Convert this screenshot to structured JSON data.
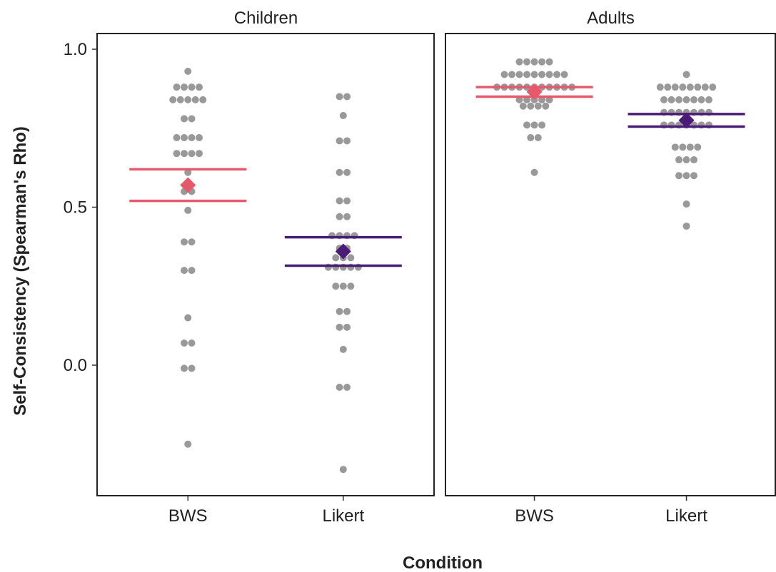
{
  "chart_data": {
    "type": "scatter",
    "title": "",
    "xlabel": "Condition",
    "ylabel": "Self-Consistency (Spearman's Rho)",
    "ylim": [
      -0.41,
      1.03
    ],
    "yticks": [
      "1.0",
      "0.5",
      "0.0"
    ],
    "ytick_values": [
      1.0,
      0.5,
      0.0
    ],
    "categories": [
      "BWS",
      "Likert"
    ],
    "grid": false,
    "legend": "none",
    "colors": {
      "BWS": "#E8586B",
      "Likert": "#4B1B78",
      "points": "#999999"
    },
    "panels": [
      {
        "name": "Children",
        "groups": [
          {
            "condition": "BWS",
            "mean": 0.57,
            "ci": [
              0.52,
              0.62
            ],
            "values": [
              0.93,
              0.88,
              0.88,
              0.88,
              0.88,
              0.84,
              0.84,
              0.84,
              0.84,
              0.84,
              0.78,
              0.78,
              0.72,
              0.72,
              0.72,
              0.72,
              0.67,
              0.67,
              0.67,
              0.67,
              0.61,
              0.55,
              0.55,
              0.49,
              0.39,
              0.39,
              0.3,
              0.3,
              0.15,
              0.07,
              0.07,
              -0.01,
              -0.01,
              -0.25
            ]
          },
          {
            "condition": "Likert",
            "mean": 0.36,
            "ci": [
              0.315,
              0.405
            ],
            "values": [
              0.85,
              0.85,
              0.79,
              0.71,
              0.71,
              0.61,
              0.61,
              0.52,
              0.52,
              0.47,
              0.47,
              0.41,
              0.41,
              0.41,
              0.41,
              0.37,
              0.37,
              0.34,
              0.34,
              0.34,
              0.31,
              0.31,
              0.31,
              0.31,
              0.31,
              0.25,
              0.25,
              0.25,
              0.17,
              0.17,
              0.12,
              0.12,
              0.05,
              -0.07,
              -0.07,
              -0.33
            ]
          }
        ]
      },
      {
        "name": "Adults",
        "groups": [
          {
            "condition": "BWS",
            "mean": 0.865,
            "ci": [
              0.85,
              0.88
            ],
            "values": [
              0.96,
              0.96,
              0.96,
              0.96,
              0.96,
              0.92,
              0.92,
              0.92,
              0.92,
              0.92,
              0.92,
              0.92,
              0.92,
              0.92,
              0.88,
              0.88,
              0.88,
              0.88,
              0.88,
              0.88,
              0.88,
              0.88,
              0.88,
              0.88,
              0.88,
              0.84,
              0.84,
              0.84,
              0.84,
              0.84,
              0.82,
              0.82,
              0.82,
              0.82,
              0.76,
              0.76,
              0.76,
              0.72,
              0.72,
              0.61
            ]
          },
          {
            "condition": "Likert",
            "mean": 0.775,
            "ci": [
              0.755,
              0.795
            ],
            "values": [
              0.92,
              0.88,
              0.88,
              0.88,
              0.88,
              0.88,
              0.88,
              0.88,
              0.88,
              0.84,
              0.84,
              0.84,
              0.84,
              0.84,
              0.84,
              0.84,
              0.8,
              0.8,
              0.8,
              0.8,
              0.8,
              0.8,
              0.8,
              0.76,
              0.76,
              0.76,
              0.76,
              0.76,
              0.76,
              0.76,
              0.69,
              0.69,
              0.69,
              0.69,
              0.65,
              0.65,
              0.65,
              0.6,
              0.6,
              0.6,
              0.51,
              0.44
            ]
          }
        ]
      }
    ]
  }
}
